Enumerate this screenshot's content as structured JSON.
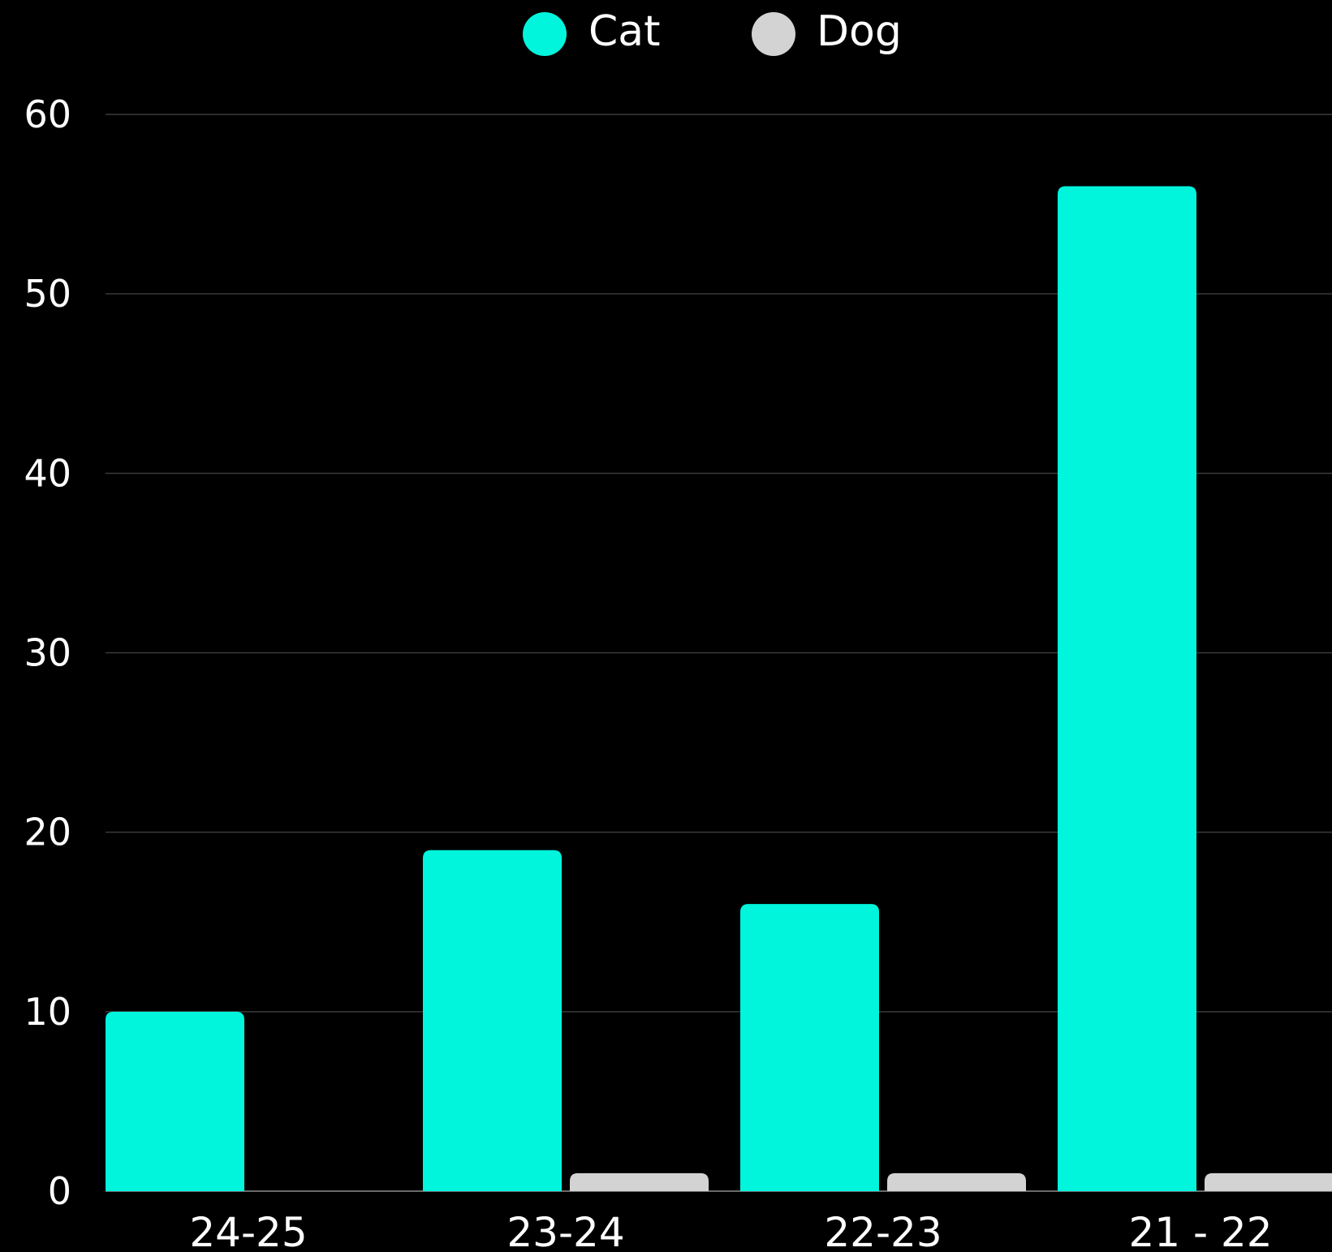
{
  "chart_data": {
    "type": "bar",
    "categories": [
      "24-25",
      "23-24",
      "22-23",
      "21 - 22"
    ],
    "series": [
      {
        "name": "Cat",
        "color": "#00F5DC",
        "values": [
          10,
          19,
          16,
          56
        ]
      },
      {
        "name": "Dog",
        "color": "#D3D3D3",
        "values": [
          0,
          1,
          1,
          1
        ]
      }
    ],
    "ylim": [
      0,
      60
    ],
    "yticks": [
      0,
      10,
      20,
      30,
      40,
      50,
      60
    ],
    "grid": true,
    "legend": "top-center"
  }
}
